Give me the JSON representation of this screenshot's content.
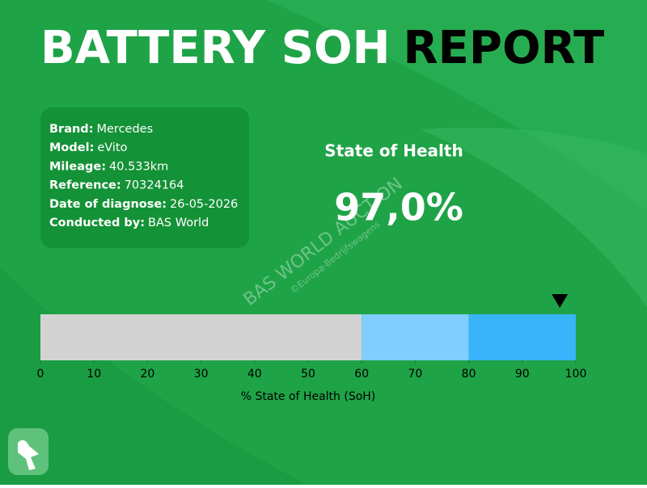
{
  "header": {
    "title_light": "BATTERY SOH",
    "title_dark": "REPORT"
  },
  "info": [
    {
      "label": "Brand:",
      "value": "Mercedes"
    },
    {
      "label": "Model:",
      "value": "eVito"
    },
    {
      "label": "Mileage:",
      "value": "40.533km"
    },
    {
      "label": "Reference:",
      "value": "70324164"
    },
    {
      "label": "Date of diagnose:",
      "value": "26-05-2026"
    },
    {
      "label": "Conducted by:",
      "value": "BAS World"
    }
  ],
  "watermark": {
    "line1": "BAS WORLD AUCTION",
    "line2": "©Europa-Bedrijfswagens"
  },
  "chart_data": {
    "type": "gauge",
    "title": "State of Health",
    "value": 97,
    "value_label": "97,0%",
    "xlabel": "% State of Health (SoH)",
    "xlim": [
      0,
      100
    ],
    "xticks": [
      0,
      10,
      20,
      30,
      40,
      50,
      60,
      70,
      80,
      90,
      100
    ],
    "segments": [
      {
        "from": 0,
        "to": 60,
        "color": "#d3d3d3"
      },
      {
        "from": 60,
        "to": 80,
        "color": "#7fcefd"
      },
      {
        "from": 80,
        "to": 100,
        "color": "#38b5fa"
      }
    ],
    "marker_color": "#000000"
  }
}
